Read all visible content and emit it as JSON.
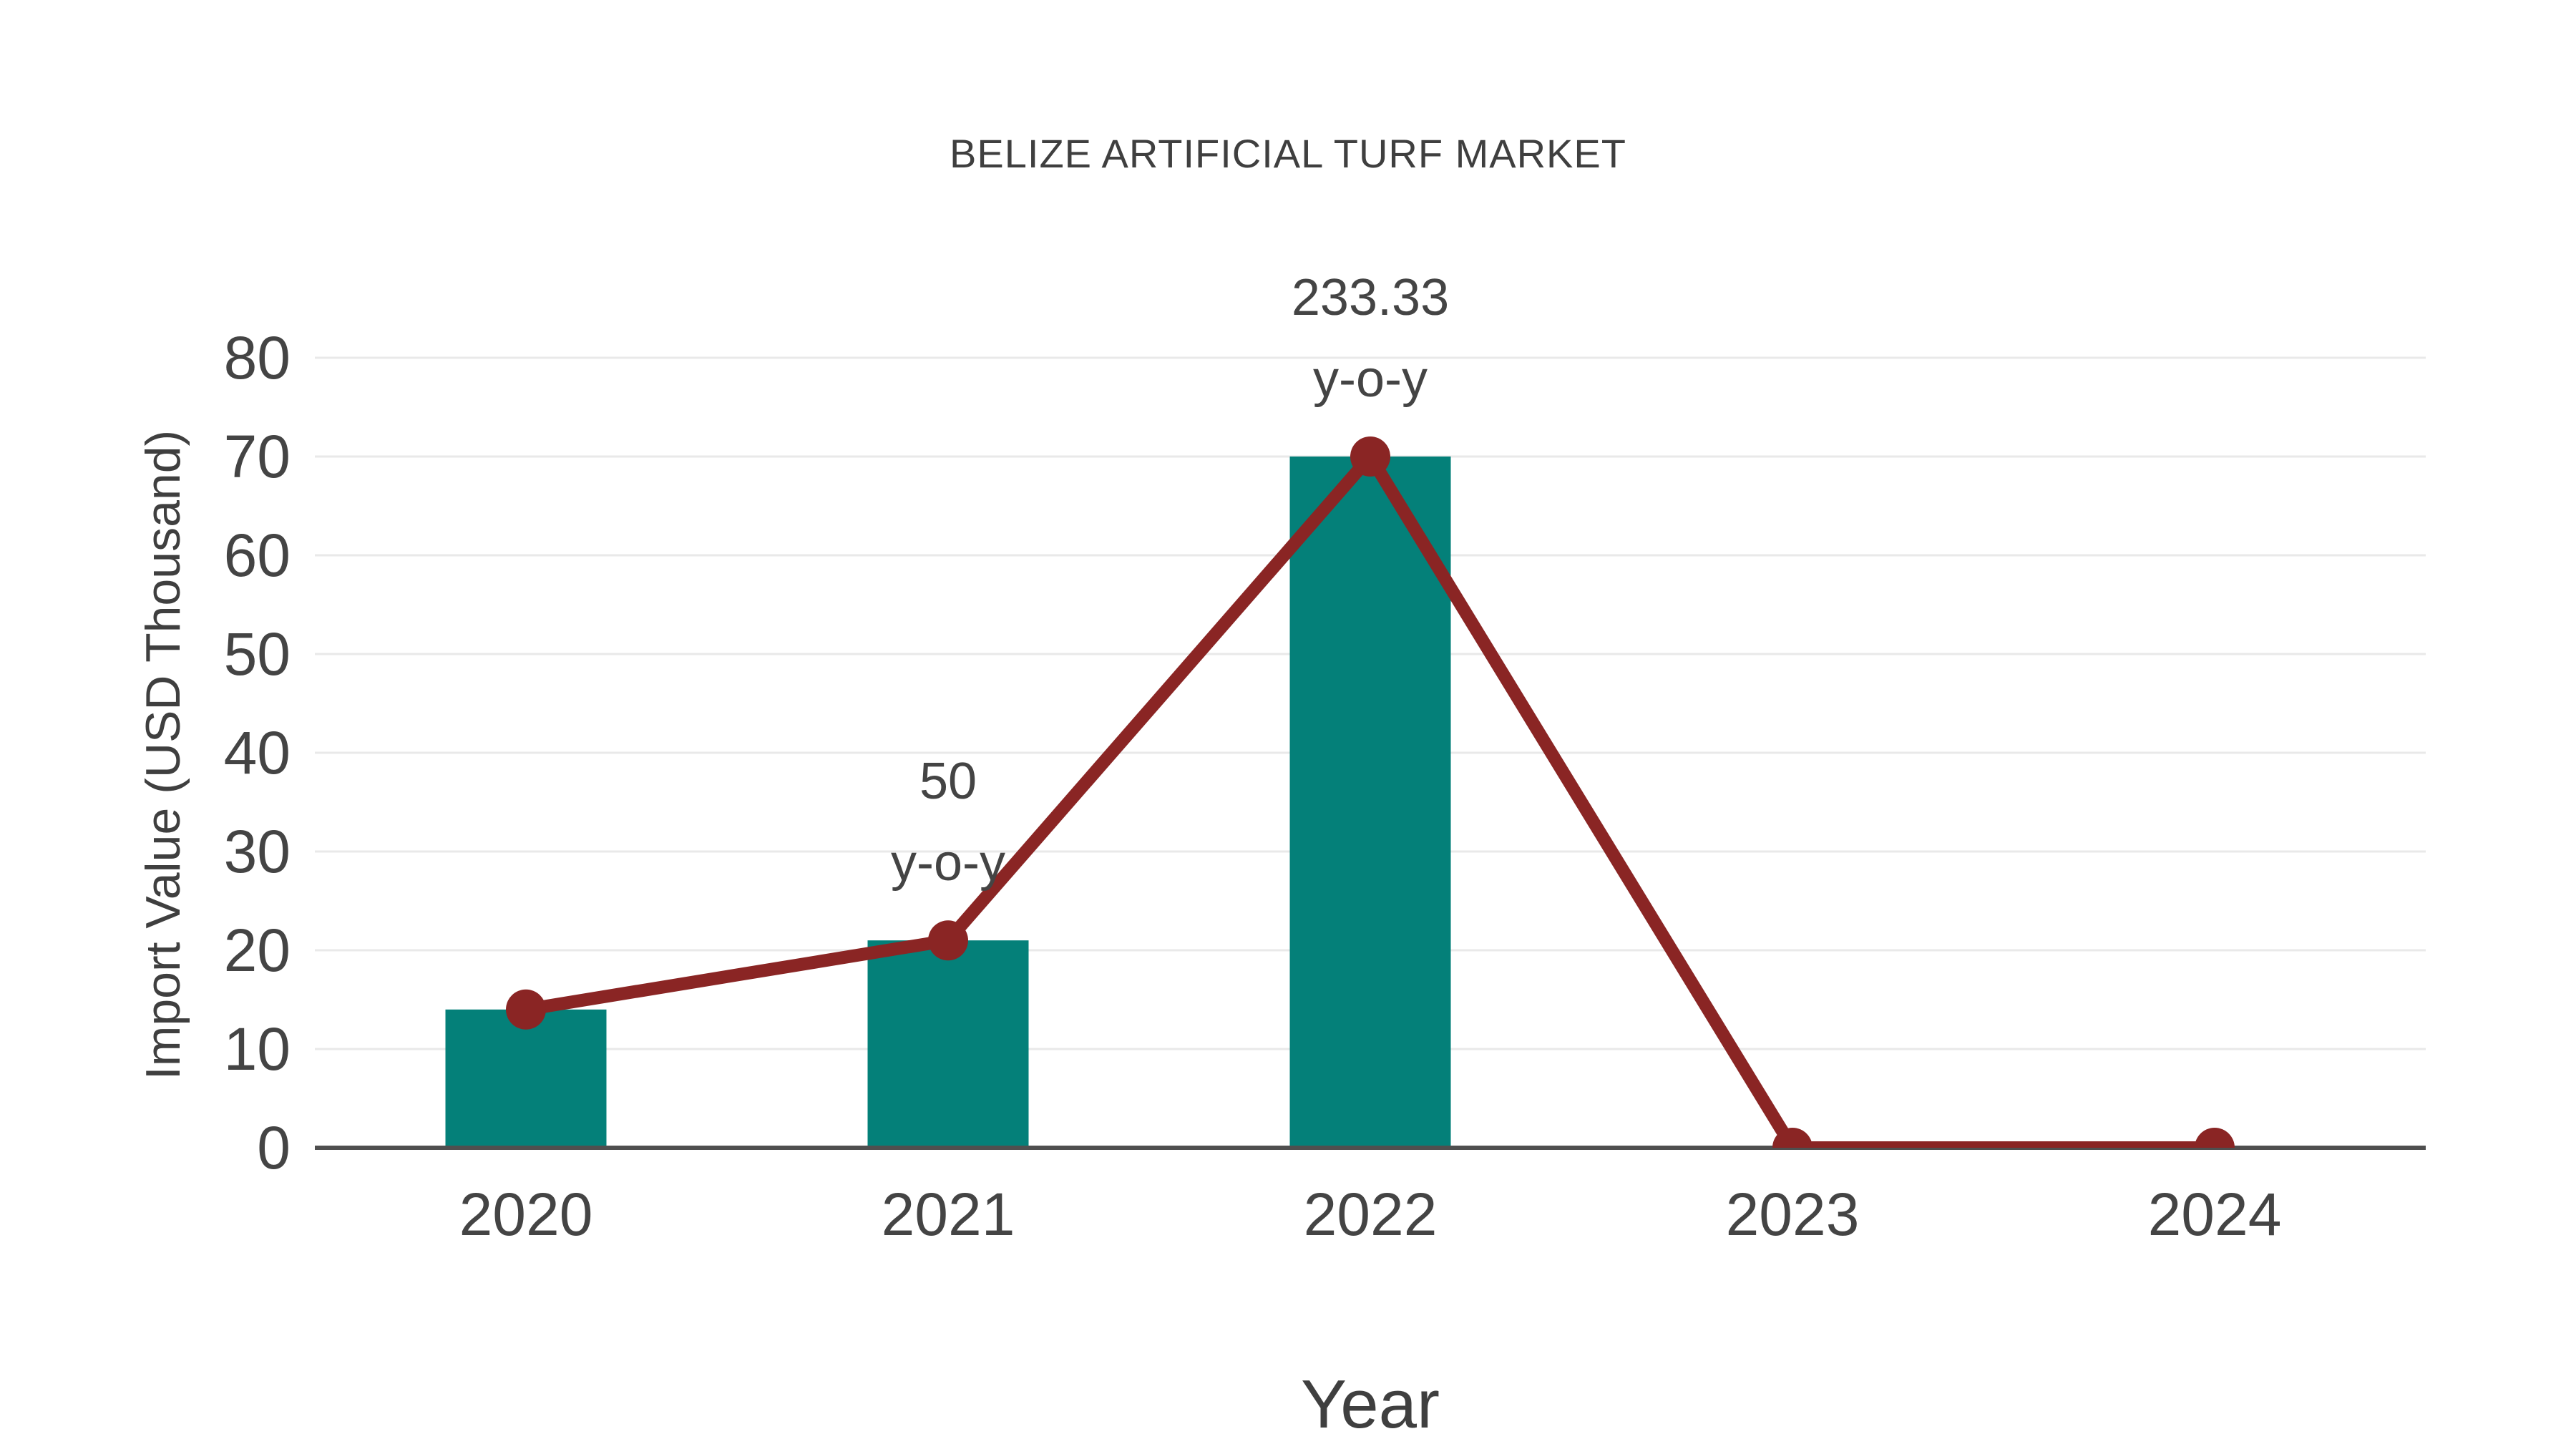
{
  "page": {
    "background": "#ffffff"
  },
  "chart_data": {
    "type": "bar",
    "title": "BELIZE ARTIFICIAL TURF MARKET",
    "xlabel": "Year",
    "ylabel": "Import Value (USD Thousand)",
    "categories": [
      "2020",
      "2021",
      "2022",
      "2023",
      "2024"
    ],
    "series": [
      {
        "name": "import-value-bars",
        "type": "bar",
        "values": [
          14,
          21,
          70,
          0,
          0
        ],
        "color": "#048079"
      },
      {
        "name": "yoy-trend-line",
        "type": "line",
        "values": [
          14,
          21,
          70,
          0,
          0
        ],
        "color": "#8a2524"
      }
    ],
    "annotations": [
      {
        "category": "2021",
        "value": 21,
        "lines": [
          "50",
          "y-o-y"
        ]
      },
      {
        "category": "2022",
        "value": 70,
        "lines": [
          "233.33",
          "y-o-y"
        ]
      }
    ],
    "ylim": [
      0,
      80
    ],
    "yticks": [
      0,
      10,
      20,
      30,
      40,
      50,
      60,
      70,
      80
    ],
    "grid": true,
    "legend_position": "none",
    "colors": {
      "text": "#444444",
      "grid": "#e9e9e9",
      "axis": "#4f4f4f"
    }
  }
}
